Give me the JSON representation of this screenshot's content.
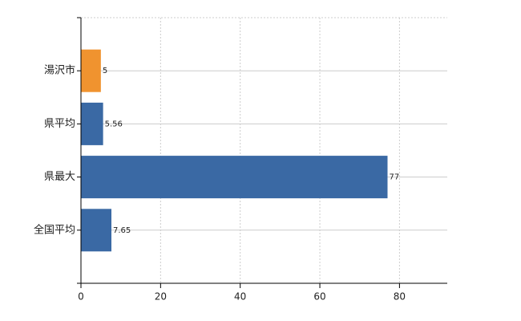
{
  "chart_data": {
    "type": "bar",
    "orientation": "horizontal",
    "categories": [
      "湯沢市",
      "県平均",
      "県最大",
      "全国平均"
    ],
    "values": [
      5,
      5.56,
      77,
      7.65
    ],
    "colors": [
      "#f0932f",
      "#3a69a4",
      "#3a69a4",
      "#3a69a4"
    ],
    "xlim": [
      0,
      92
    ],
    "xticks": [
      0,
      20,
      40,
      60,
      80
    ],
    "grid": true
  }
}
